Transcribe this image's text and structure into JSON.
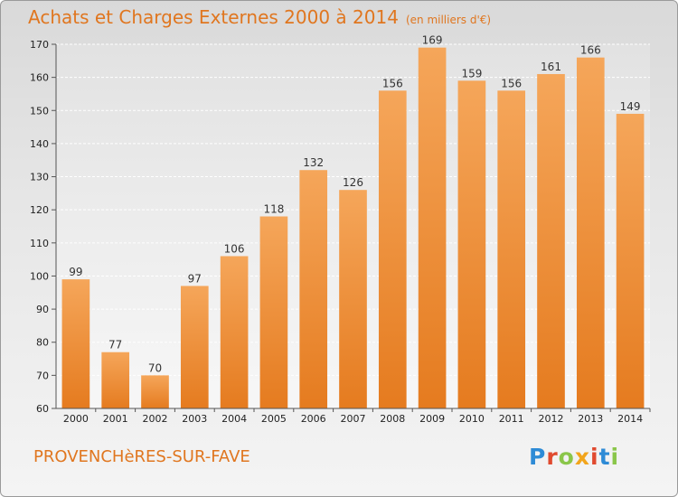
{
  "header": {
    "title": "Achats et Charges Externes 2000 à 2014",
    "subtitle": "(en milliers d'€)"
  },
  "footer": {
    "commune": "PROVENCHèRES-SUR-FAVE",
    "brand": "Proxiti"
  },
  "colors": {
    "bar_top": "#f5a65a",
    "bar_bottom": "#e57b1f",
    "accent": "#e0761f",
    "brand_letters": [
      "#2e8bd6",
      "#e04a2f",
      "#8ac64a",
      "#f2a51c",
      "#e04a2f",
      "#2e8bd6",
      "#8ac64a"
    ]
  },
  "chart_data": {
    "type": "bar",
    "title": "Achats et Charges Externes 2000 à 2014",
    "subtitle": "(en milliers d'€)",
    "xlabel": "",
    "ylabel": "",
    "categories": [
      "2000",
      "2001",
      "2002",
      "2003",
      "2004",
      "2005",
      "2006",
      "2007",
      "2008",
      "2009",
      "2010",
      "2011",
      "2012",
      "2013",
      "2014"
    ],
    "values": [
      99,
      77,
      70,
      97,
      106,
      118,
      132,
      126,
      156,
      169,
      159,
      156,
      161,
      166,
      149
    ],
    "ylim": [
      60,
      170
    ],
    "yticks": [
      60,
      70,
      80,
      90,
      100,
      110,
      120,
      130,
      140,
      150,
      160,
      170
    ],
    "grid": true,
    "data_labels": true
  }
}
